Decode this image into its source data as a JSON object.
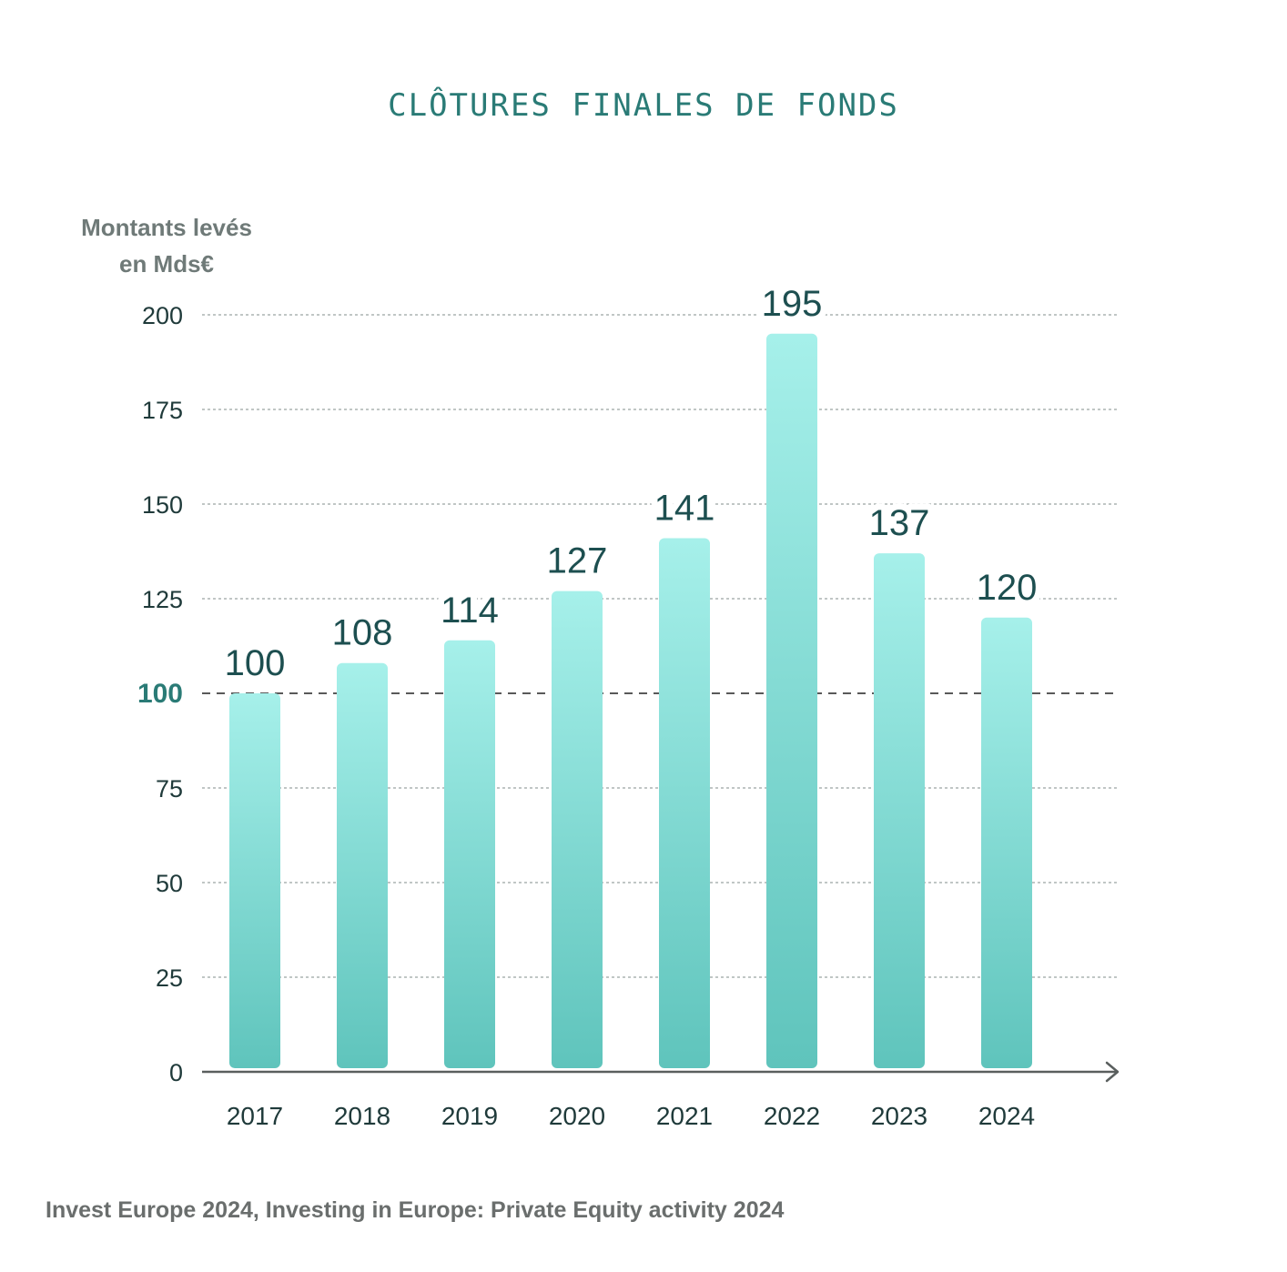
{
  "title": "CLÔTURES FINALES DE FONDS",
  "source": "Invest Europe 2024, Investing in Europe: Private Equity activity 2024",
  "colors": {
    "title": "#2a7b76",
    "bar_top": "#a6f0ea",
    "bar_bottom": "#5fc4bc",
    "value_label": "#1d4f50",
    "tick_label": "#1f3a3a",
    "reference_label": "#2a7b76",
    "axis_title": "#6f7a78",
    "grid": "#9aa3a2",
    "axis": "#5a5f5e",
    "source": "#6a6e6d"
  },
  "chart_data": {
    "type": "bar",
    "title": "CLÔTURES FINALES DE FONDS",
    "ylabel_lines": [
      "Montants levés",
      "en Mds€"
    ],
    "xlabel": "",
    "categories": [
      "2017",
      "2018",
      "2019",
      "2020",
      "2021",
      "2022",
      "2023",
      "2024"
    ],
    "values": [
      100,
      108,
      114,
      127,
      141,
      195,
      137,
      120
    ],
    "data_labels": [
      "100",
      "108",
      "114",
      "127",
      "141",
      "195",
      "137",
      "120"
    ],
    "ylim": [
      0,
      200
    ],
    "yticks": [
      0,
      25,
      50,
      75,
      100,
      125,
      150,
      175,
      200
    ],
    "ytick_labels": [
      "0",
      "25",
      "50",
      "75",
      "100",
      "125",
      "150",
      "175",
      "200"
    ],
    "reference_line": {
      "value": 100,
      "label": "100",
      "style": "dashed"
    },
    "grid": true,
    "legend": "none"
  }
}
